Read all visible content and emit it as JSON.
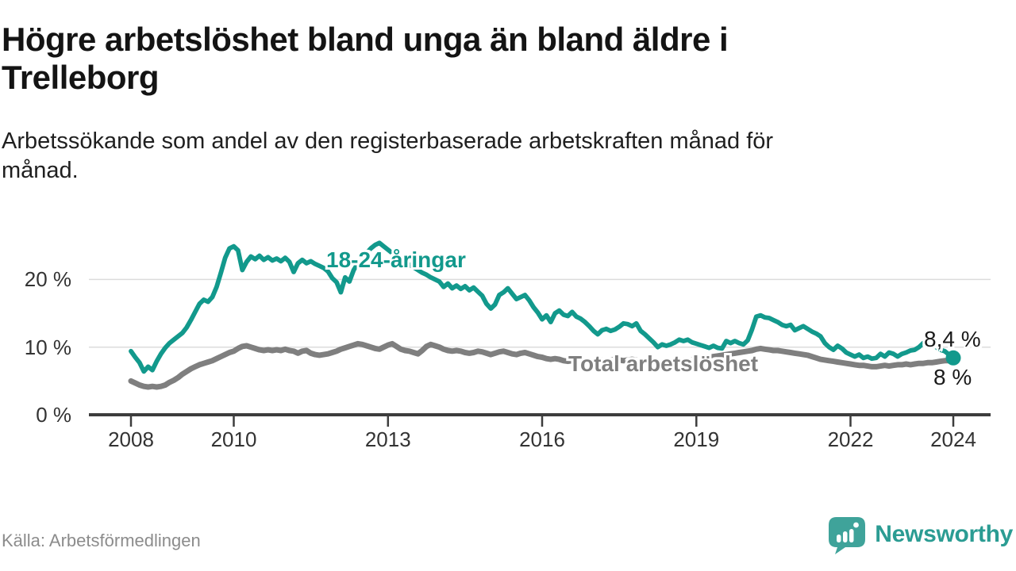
{
  "header": {
    "title_line1": "Högre arbetslöshet bland unga än bland äldre i",
    "title_line2": "Trelleborg",
    "subtitle_line1": "Arbetssökande som andel av den registerbaserade arbetskraften månad för",
    "subtitle_line2": "månad."
  },
  "footer": {
    "source": "Källa: Arbetsförmedlingen",
    "brand_name": "Newsworthy"
  },
  "colors": {
    "youth_line": "#12998c",
    "total_line": "#7f7f7f",
    "axis": "#3d3d3d",
    "grid": "#dcdcdc",
    "value_label": "#1a1a1a",
    "brand_teal": "#3fa39a"
  },
  "chart_data": {
    "type": "line",
    "x_unit": "month",
    "x_range": [
      "2008-01",
      "2024-01"
    ],
    "xticks": [
      2008,
      2010,
      2013,
      2016,
      2019,
      2022,
      2024
    ],
    "yticks": [
      {
        "value": 0,
        "label": "0 %"
      },
      {
        "value": 10,
        "label": "10 %"
      },
      {
        "value": 20,
        "label": "20 %"
      }
    ],
    "ylim": [
      0,
      26
    ],
    "grid": "horizontal",
    "legend_position": "inline-labels",
    "series": [
      {
        "name": "18-24-åringar",
        "color": "#12998c",
        "end_label": "8,4 %",
        "end_value": 8.4,
        "values": [
          9.4,
          8.5,
          7.7,
          6.4,
          7.1,
          6.6,
          7.9,
          9.0,
          9.9,
          10.6,
          11.1,
          11.6,
          12.1,
          12.9,
          14.0,
          15.2,
          16.4,
          17.0,
          16.7,
          17.4,
          18.9,
          21.0,
          23.2,
          24.6,
          24.9,
          24.3,
          21.4,
          22.6,
          23.4,
          23.0,
          23.5,
          22.9,
          23.3,
          22.8,
          23.1,
          22.7,
          23.2,
          22.6,
          21.1,
          22.4,
          22.9,
          22.4,
          22.7,
          22.3,
          22.0,
          21.7,
          21.2,
          20.2,
          19.6,
          18.1,
          20.3,
          19.7,
          21.4,
          22.4,
          23.1,
          23.9,
          24.6,
          25.1,
          25.4,
          24.9,
          24.4,
          23.9,
          23.4,
          22.9,
          22.5,
          22.2,
          21.8,
          21.4,
          21.0,
          20.7,
          20.3,
          20.0,
          19.7,
          18.9,
          19.4,
          18.7,
          19.1,
          18.6,
          19.0,
          18.4,
          18.8,
          18.2,
          17.6,
          16.4,
          15.7,
          16.3,
          17.7,
          18.1,
          18.7,
          17.9,
          17.1,
          17.4,
          17.7,
          16.9,
          15.9,
          15.1,
          14.1,
          14.7,
          13.7,
          15.0,
          15.4,
          14.8,
          14.6,
          15.2,
          14.5,
          14.2,
          13.7,
          13.1,
          12.4,
          11.9,
          12.5,
          12.7,
          12.4,
          12.6,
          13.0,
          13.5,
          13.4,
          13.1,
          13.5,
          12.4,
          11.9,
          11.3,
          10.7,
          10.0,
          10.4,
          10.2,
          10.4,
          10.7,
          11.1,
          10.9,
          11.1,
          10.7,
          10.5,
          10.3,
          10.1,
          9.9,
          10.2,
          9.9,
          9.8,
          10.9,
          10.6,
          10.9,
          10.6,
          10.4,
          11.0,
          12.6,
          14.5,
          14.7,
          14.4,
          14.3,
          14.0,
          13.7,
          13.3,
          13.1,
          13.3,
          12.5,
          12.8,
          13.1,
          12.7,
          12.3,
          12.0,
          11.6,
          10.6,
          10.0,
          9.6,
          10.2,
          9.8,
          9.2,
          8.9,
          8.6,
          8.9,
          8.4,
          8.6,
          8.3,
          8.4,
          9.0,
          8.6,
          9.2,
          9.0,
          8.6,
          9.0,
          9.2,
          9.5,
          9.6,
          10.0,
          10.6,
          11.0,
          10.4,
          10.0,
          9.6,
          9.4,
          8.9,
          8.4
        ]
      },
      {
        "name": "Total arbetslöshet",
        "color": "#7f7f7f",
        "end_label": "8 %",
        "end_value": 8.0,
        "values": [
          5.0,
          4.7,
          4.4,
          4.2,
          4.1,
          4.2,
          4.1,
          4.2,
          4.4,
          4.8,
          5.1,
          5.5,
          6.0,
          6.4,
          6.8,
          7.1,
          7.4,
          7.6,
          7.8,
          8.0,
          8.3,
          8.6,
          8.9,
          9.2,
          9.4,
          9.8,
          10.1,
          10.2,
          10.0,
          9.8,
          9.6,
          9.5,
          9.6,
          9.5,
          9.6,
          9.5,
          9.7,
          9.5,
          9.4,
          9.1,
          9.4,
          9.5,
          9.1,
          8.9,
          8.8,
          8.9,
          9.0,
          9.2,
          9.4,
          9.7,
          9.9,
          10.1,
          10.3,
          10.5,
          10.4,
          10.2,
          10.0,
          9.8,
          9.7,
          10.0,
          10.3,
          10.5,
          10.1,
          9.7,
          9.5,
          9.4,
          9.2,
          9.0,
          9.5,
          10.1,
          10.4,
          10.2,
          10.0,
          9.7,
          9.5,
          9.4,
          9.5,
          9.4,
          9.2,
          9.1,
          9.2,
          9.4,
          9.3,
          9.1,
          8.9,
          9.1,
          9.3,
          9.4,
          9.2,
          9.0,
          8.9,
          9.1,
          9.2,
          9.0,
          8.8,
          8.6,
          8.5,
          8.3,
          8.2,
          8.3,
          8.2,
          8.0,
          7.9,
          8.0,
          8.1,
          8.0,
          7.9,
          7.8,
          7.9,
          8.0,
          8.1,
          8.0,
          8.1,
          8.2,
          8.1,
          8.0,
          8.1,
          8.2,
          8.1,
          8.0,
          8.0,
          7.9,
          7.8,
          7.9,
          7.8,
          7.7,
          7.8,
          7.9,
          8.0,
          8.1,
          8.0,
          8.1,
          8.2,
          8.3,
          8.4,
          8.5,
          8.6,
          8.7,
          8.8,
          8.9,
          9.0,
          9.1,
          9.2,
          9.3,
          9.4,
          9.5,
          9.7,
          9.8,
          9.7,
          9.6,
          9.5,
          9.5,
          9.4,
          9.3,
          9.2,
          9.1,
          9.0,
          8.9,
          8.8,
          8.6,
          8.4,
          8.2,
          8.1,
          8.0,
          7.9,
          7.8,
          7.7,
          7.6,
          7.5,
          7.4,
          7.3,
          7.3,
          7.2,
          7.1,
          7.1,
          7.2,
          7.3,
          7.2,
          7.3,
          7.4,
          7.4,
          7.5,
          7.4,
          7.5,
          7.6,
          7.6,
          7.7,
          7.7,
          7.8,
          7.9,
          8.0,
          8.0,
          8.0
        ]
      }
    ]
  }
}
